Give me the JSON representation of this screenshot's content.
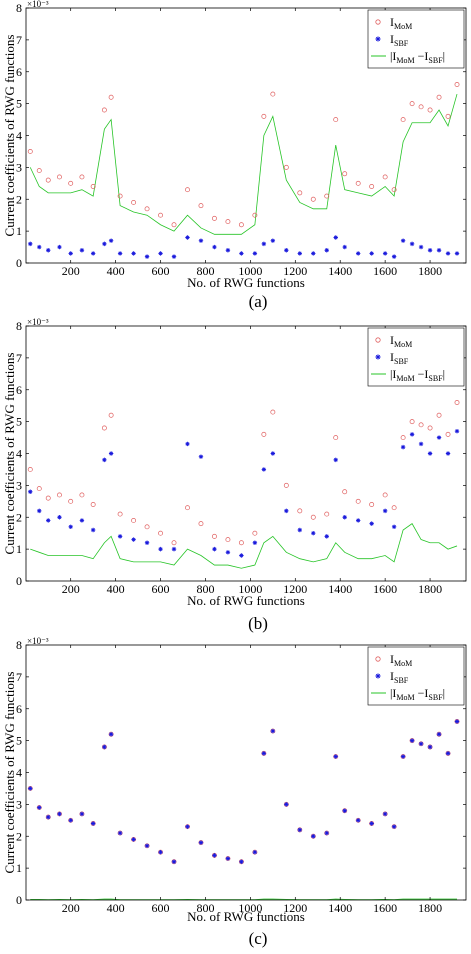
{
  "chart_data": [
    {
      "type": "scatter",
      "panel_label": "(a)",
      "xlabel": "No. of RWG functions",
      "ylabel": "Current coefficients of RWG functions",
      "exponent_label": "×10⁻³",
      "xlim": [
        1,
        1960
      ],
      "ylim": [
        0,
        8
      ],
      "xticks": [
        200,
        400,
        600,
        800,
        1000,
        1200,
        1400,
        1600,
        1800
      ],
      "yticks": [
        0,
        1,
        2,
        3,
        4,
        5,
        6,
        7,
        8
      ],
      "grid": false,
      "legend_position": "top-right",
      "series": [
        {
          "name": "I_MoM",
          "legend_main": "I",
          "legend_sub": "MoM",
          "marker": "circle",
          "color": "#e06060",
          "x": [
            20,
            60,
            100,
            150,
            200,
            250,
            300,
            350,
            380,
            420,
            480,
            540,
            600,
            660,
            720,
            780,
            840,
            900,
            960,
            1020,
            1060,
            1100,
            1160,
            1220,
            1280,
            1340,
            1380,
            1420,
            1480,
            1540,
            1600,
            1640,
            1680,
            1720,
            1760,
            1800,
            1840,
            1880,
            1920
          ],
          "values": [
            3.5,
            2.9,
            2.6,
            2.7,
            2.5,
            2.7,
            2.4,
            4.8,
            5.2,
            2.1,
            1.9,
            1.7,
            1.5,
            1.2,
            2.3,
            1.8,
            1.4,
            1.3,
            1.2,
            1.5,
            4.6,
            5.3,
            3.0,
            2.2,
            2.0,
            2.1,
            4.5,
            2.8,
            2.5,
            2.4,
            2.7,
            2.3,
            4.5,
            5.0,
            4.9,
            4.8,
            5.2,
            4.6,
            5.6
          ]
        },
        {
          "name": "I_SBF",
          "legend_main": "I",
          "legend_sub": "SBF",
          "marker": "star",
          "color": "#1a1adc",
          "x": [
            20,
            60,
            100,
            150,
            200,
            250,
            300,
            350,
            380,
            420,
            480,
            540,
            600,
            660,
            720,
            780,
            840,
            900,
            960,
            1020,
            1060,
            1100,
            1160,
            1220,
            1280,
            1340,
            1380,
            1420,
            1480,
            1540,
            1600,
            1640,
            1680,
            1720,
            1760,
            1800,
            1840,
            1880,
            1920
          ],
          "values": [
            0.6,
            0.5,
            0.4,
            0.5,
            0.3,
            0.4,
            0.3,
            0.6,
            0.7,
            0.3,
            0.3,
            0.2,
            0.3,
            0.2,
            0.8,
            0.7,
            0.5,
            0.4,
            0.3,
            0.3,
            0.6,
            0.7,
            0.4,
            0.3,
            0.3,
            0.4,
            0.8,
            0.5,
            0.3,
            0.3,
            0.3,
            0.2,
            0.7,
            0.6,
            0.5,
            0.4,
            0.4,
            0.3,
            0.3
          ]
        },
        {
          "name": "|I_MoM − I_SBF|",
          "legend_main": "|I",
          "legend_sub1": "MoM",
          "legend_mid": " −I",
          "legend_sub2": "SBF",
          "legend_end": "|",
          "marker": "line",
          "color": "#27c427",
          "x": [
            20,
            60,
            100,
            150,
            200,
            250,
            300,
            350,
            380,
            420,
            480,
            540,
            600,
            660,
            720,
            780,
            840,
            900,
            960,
            1020,
            1060,
            1100,
            1160,
            1220,
            1280,
            1340,
            1380,
            1420,
            1480,
            1540,
            1600,
            1640,
            1680,
            1720,
            1760,
            1800,
            1840,
            1880,
            1920
          ],
          "values": [
            3.0,
            2.4,
            2.2,
            2.2,
            2.2,
            2.3,
            2.1,
            4.2,
            4.5,
            1.8,
            1.6,
            1.5,
            1.2,
            1.0,
            1.5,
            1.1,
            0.9,
            0.9,
            0.9,
            1.2,
            4.0,
            4.6,
            2.6,
            1.9,
            1.7,
            1.7,
            3.7,
            2.3,
            2.2,
            2.1,
            2.4,
            2.1,
            3.8,
            4.4,
            4.4,
            4.4,
            4.8,
            4.3,
            5.3
          ]
        }
      ]
    },
    {
      "type": "scatter",
      "panel_label": "(b)",
      "xlabel": "No. of RWG functions",
      "ylabel": "Current coefficients of RWG functions",
      "exponent_label": "×10⁻³",
      "xlim": [
        1,
        1960
      ],
      "ylim": [
        0,
        8
      ],
      "xticks": [
        200,
        400,
        600,
        800,
        1000,
        1200,
        1400,
        1600,
        1800
      ],
      "yticks": [
        0,
        1,
        2,
        3,
        4,
        5,
        6,
        7,
        8
      ],
      "grid": false,
      "legend_position": "top-right",
      "series": [
        {
          "name": "I_MoM",
          "legend_main": "I",
          "legend_sub": "MoM",
          "marker": "circle",
          "color": "#e06060",
          "x": [
            20,
            60,
            100,
            150,
            200,
            250,
            300,
            350,
            380,
            420,
            480,
            540,
            600,
            660,
            720,
            780,
            840,
            900,
            960,
            1020,
            1060,
            1100,
            1160,
            1220,
            1280,
            1340,
            1380,
            1420,
            1480,
            1540,
            1600,
            1640,
            1680,
            1720,
            1760,
            1800,
            1840,
            1880,
            1920
          ],
          "values": [
            3.5,
            2.9,
            2.6,
            2.7,
            2.5,
            2.7,
            2.4,
            4.8,
            5.2,
            2.1,
            1.9,
            1.7,
            1.5,
            1.2,
            2.3,
            1.8,
            1.4,
            1.3,
            1.2,
            1.5,
            4.6,
            5.3,
            3.0,
            2.2,
            2.0,
            2.1,
            4.5,
            2.8,
            2.5,
            2.4,
            2.7,
            2.3,
            4.5,
            5.0,
            4.9,
            4.8,
            5.2,
            4.6,
            5.6
          ]
        },
        {
          "name": "I_SBF",
          "legend_main": "I",
          "legend_sub": "SBF",
          "marker": "star",
          "color": "#1a1adc",
          "x": [
            20,
            60,
            100,
            150,
            200,
            250,
            300,
            350,
            380,
            420,
            480,
            540,
            600,
            660,
            720,
            780,
            840,
            900,
            960,
            1020,
            1060,
            1100,
            1160,
            1220,
            1280,
            1340,
            1380,
            1420,
            1480,
            1540,
            1600,
            1640,
            1680,
            1720,
            1760,
            1800,
            1840,
            1880,
            1920
          ],
          "values": [
            2.8,
            2.2,
            1.9,
            2.0,
            1.7,
            1.9,
            1.6,
            3.8,
            4.0,
            1.4,
            1.3,
            1.2,
            1.0,
            1.0,
            4.3,
            3.9,
            1.0,
            0.9,
            0.8,
            1.2,
            3.5,
            4.0,
            2.2,
            1.6,
            1.5,
            1.4,
            3.8,
            2.0,
            1.9,
            1.8,
            2.2,
            1.7,
            4.2,
            4.6,
            4.3,
            4.0,
            4.5,
            4.0,
            4.7
          ]
        },
        {
          "name": "|I_MoM − I_SBF|",
          "legend_main": "|I",
          "legend_sub1": "MoM",
          "legend_mid": " −I",
          "legend_sub2": "SBF",
          "legend_end": "|",
          "marker": "line",
          "color": "#27c427",
          "x": [
            20,
            60,
            100,
            150,
            200,
            250,
            300,
            350,
            380,
            420,
            480,
            540,
            600,
            660,
            720,
            780,
            840,
            900,
            960,
            1020,
            1060,
            1100,
            1160,
            1220,
            1280,
            1340,
            1380,
            1420,
            1480,
            1540,
            1600,
            1640,
            1680,
            1720,
            1760,
            1800,
            1840,
            1880,
            1920
          ],
          "values": [
            1.0,
            0.9,
            0.8,
            0.8,
            0.8,
            0.8,
            0.7,
            1.2,
            1.4,
            0.7,
            0.6,
            0.6,
            0.6,
            0.5,
            1.0,
            0.8,
            0.5,
            0.5,
            0.4,
            0.5,
            1.2,
            1.4,
            0.9,
            0.7,
            0.6,
            0.7,
            1.2,
            0.9,
            0.7,
            0.7,
            0.8,
            0.6,
            1.6,
            1.8,
            1.3,
            1.2,
            1.2,
            1.0,
            1.1
          ]
        }
      ]
    },
    {
      "type": "scatter",
      "panel_label": "(c)",
      "xlabel": "No. of RWG functions",
      "ylabel": "Current coefficients of RWG functions",
      "exponent_label": "×10⁻³",
      "xlim": [
        1,
        1960
      ],
      "ylim": [
        0,
        8
      ],
      "xticks": [
        200,
        400,
        600,
        800,
        1000,
        1200,
        1400,
        1600,
        1800
      ],
      "yticks": [
        0,
        1,
        2,
        3,
        4,
        5,
        6,
        7,
        8
      ],
      "grid": false,
      "legend_position": "top-right",
      "series": [
        {
          "name": "I_MoM",
          "legend_main": "I",
          "legend_sub": "MoM",
          "marker": "circle",
          "color": "#e06060",
          "x": [
            20,
            60,
            100,
            150,
            200,
            250,
            300,
            350,
            380,
            420,
            480,
            540,
            600,
            660,
            720,
            780,
            840,
            900,
            960,
            1020,
            1060,
            1100,
            1160,
            1220,
            1280,
            1340,
            1380,
            1420,
            1480,
            1540,
            1600,
            1640,
            1680,
            1720,
            1760,
            1800,
            1840,
            1880,
            1920
          ],
          "values": [
            3.5,
            2.9,
            2.6,
            2.7,
            2.5,
            2.7,
            2.4,
            4.8,
            5.2,
            2.1,
            1.9,
            1.7,
            1.5,
            1.2,
            2.3,
            1.8,
            1.4,
            1.3,
            1.2,
            1.5,
            4.6,
            5.3,
            3.0,
            2.2,
            2.0,
            2.1,
            4.5,
            2.8,
            2.5,
            2.4,
            2.7,
            2.3,
            4.5,
            5.0,
            4.9,
            4.8,
            5.2,
            4.6,
            5.6
          ]
        },
        {
          "name": "I_SBF",
          "legend_main": "I",
          "legend_sub": "SBF",
          "marker": "star",
          "color": "#1a1adc",
          "x": [
            20,
            60,
            100,
            150,
            200,
            250,
            300,
            350,
            380,
            420,
            480,
            540,
            600,
            660,
            720,
            780,
            840,
            900,
            960,
            1020,
            1060,
            1100,
            1160,
            1220,
            1280,
            1340,
            1380,
            1420,
            1480,
            1540,
            1600,
            1640,
            1680,
            1720,
            1760,
            1800,
            1840,
            1880,
            1920
          ],
          "values": [
            3.5,
            2.9,
            2.6,
            2.7,
            2.5,
            2.7,
            2.4,
            4.8,
            5.2,
            2.1,
            1.9,
            1.7,
            1.5,
            1.2,
            2.3,
            1.8,
            1.4,
            1.3,
            1.2,
            1.5,
            4.6,
            5.3,
            3.0,
            2.2,
            2.0,
            2.1,
            4.5,
            2.8,
            2.5,
            2.4,
            2.7,
            2.3,
            4.5,
            5.0,
            4.9,
            4.8,
            5.2,
            4.6,
            5.6
          ]
        },
        {
          "name": "|I_MoM − I_SBF|",
          "legend_main": "|I",
          "legend_sub1": "MoM",
          "legend_mid": " −I",
          "legend_sub2": "SBF",
          "legend_end": "|",
          "marker": "line",
          "color": "#27c427",
          "x": [
            20,
            60,
            100,
            150,
            200,
            250,
            300,
            350,
            380,
            420,
            480,
            540,
            600,
            660,
            720,
            780,
            840,
            900,
            960,
            1020,
            1060,
            1100,
            1160,
            1220,
            1280,
            1340,
            1380,
            1420,
            1480,
            1540,
            1600,
            1640,
            1680,
            1720,
            1760,
            1800,
            1840,
            1880,
            1920
          ],
          "values": [
            0.02,
            0.02,
            0.01,
            0.02,
            0.01,
            0.02,
            0.01,
            0.03,
            0.03,
            0.01,
            0.01,
            0.01,
            0.01,
            0.01,
            0.02,
            0.01,
            0.01,
            0.01,
            0.01,
            0.01,
            0.03,
            0.03,
            0.02,
            0.01,
            0.01,
            0.01,
            0.03,
            0.02,
            0.01,
            0.01,
            0.02,
            0.01,
            0.03,
            0.03,
            0.03,
            0.03,
            0.03,
            0.03,
            0.03
          ]
        }
      ]
    }
  ]
}
